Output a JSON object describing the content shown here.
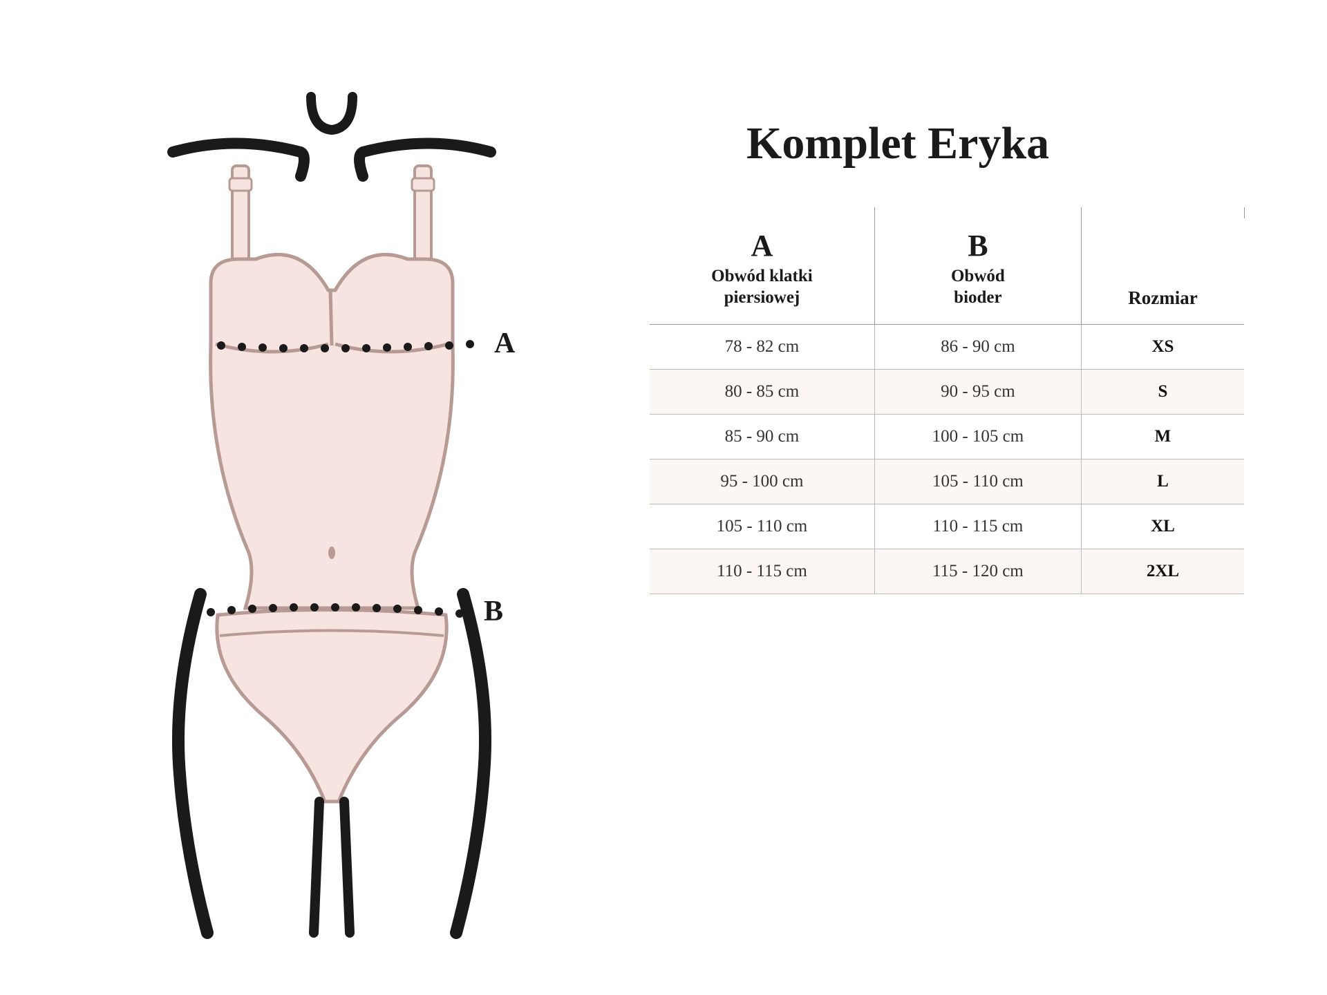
{
  "title": "Komplet Eryka",
  "figure": {
    "marker_a": "A",
    "marker_b": "B",
    "garment_fill": "#f7e3df",
    "garment_stroke": "#b89a94",
    "body_stroke": "#1a1a1a",
    "dot_color": "#1a1a1a"
  },
  "table": {
    "columns": [
      {
        "letter": "A",
        "sub": "Obwód klatki\npiersiowej"
      },
      {
        "letter": "B",
        "sub": "Obwód\nbioder"
      },
      {
        "letter": "",
        "sub": "Rozmiar"
      }
    ],
    "rows": [
      {
        "a": "78 - 82 cm",
        "b": "86 - 90 cm",
        "size": "XS"
      },
      {
        "a": "80 - 85 cm",
        "b": "90 - 95 cm",
        "size": "S"
      },
      {
        "a": "85 - 90 cm",
        "b": "100 - 105 cm",
        "size": "M"
      },
      {
        "a": "95 - 100 cm",
        "b": "105 - 110 cm",
        "size": "L"
      },
      {
        "a": "105 - 110 cm",
        "b": "110 - 115 cm",
        "size": "XL"
      },
      {
        "a": "110 - 115 cm",
        "b": "115  - 120 cm",
        "size": "2XL"
      }
    ],
    "stripe_color": "#fdf7f4",
    "border_color": "#bbbbbb",
    "header_fontsize": 27,
    "cell_fontsize": 25
  }
}
